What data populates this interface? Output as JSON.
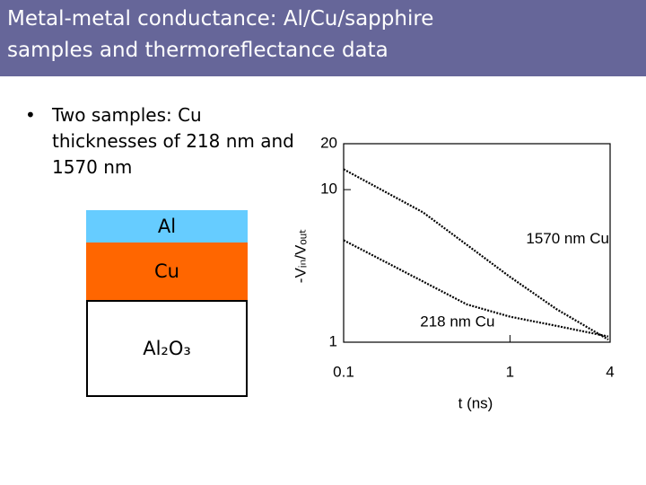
{
  "header": {
    "title_lines": [
      "Metal-metal conductance: Al/Cu/sapphire",
      "samples and thermoreflectance data"
    ]
  },
  "bullets": [
    "Two samples: Cu thicknesses of 218 nm and 1570 nm"
  ],
  "layers": [
    {
      "label": "Al"
    },
    {
      "label": "Cu"
    },
    {
      "label": "Al₂O₃"
    }
  ],
  "chart_data": {
    "type": "line",
    "xlabel": "t (ns)",
    "ylabel": "-Vᵢₙ/Vₒᵤₜ",
    "x": [
      0.1,
      0.3,
      0.55,
      1,
      1.9,
      3.9
    ],
    "series": [
      {
        "name": "1570 nm Cu",
        "color": "#000000",
        "values": [
          13.6,
          7.1,
          4.35,
          2.68,
          1.65,
          1.04
        ]
      },
      {
        "name": "218 nm Cu",
        "color": "#000000",
        "values": [
          4.66,
          2.5,
          1.77,
          1.47,
          1.28,
          1.09
        ]
      }
    ],
    "xlim": [
      0.1,
      4
    ],
    "ylim": [
      1,
      20
    ],
    "xticks": [
      0.1,
      1,
      4
    ],
    "yticks": [
      1,
      10,
      20
    ],
    "xscale": "log",
    "yscale": "log"
  }
}
